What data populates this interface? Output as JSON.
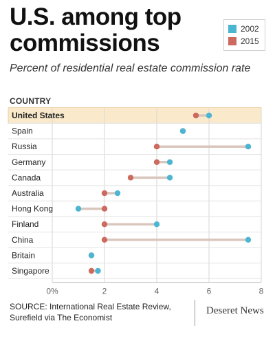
{
  "header": {
    "title": "U.S. among top commissions",
    "subtitle": "Percent of residential real estate commission rate"
  },
  "legend": {
    "items": [
      {
        "label": "2002",
        "color": "#4cb6d2"
      },
      {
        "label": "2015",
        "color": "#cd6a5f"
      }
    ]
  },
  "footer": {
    "source": "SOURCE: International Real Estate Review, Surefield via The Economist",
    "brand": "Deseret News"
  },
  "chart_data": {
    "type": "dumbbell",
    "category_axis_label": "COUNTRY",
    "categories": [
      "United States",
      "Spain",
      "Russia",
      "Germany",
      "Canada",
      "Australia",
      "Hong Kong",
      "Finland",
      "China",
      "Britain",
      "Singapore"
    ],
    "highlight": "United States",
    "series": [
      {
        "name": "2002",
        "color": "#4cb6d2",
        "values": [
          6.0,
          5.0,
          7.5,
          4.5,
          4.5,
          2.5,
          1.0,
          4.0,
          7.5,
          1.5,
          1.75
        ]
      },
      {
        "name": "2015",
        "color": "#cd6a5f",
        "values": [
          5.5,
          5.0,
          4.0,
          4.0,
          3.0,
          2.0,
          2.0,
          2.0,
          2.0,
          1.5,
          1.5
        ]
      }
    ],
    "x_ticks": [
      "0%",
      "2",
      "4",
      "6",
      "8"
    ],
    "xlim": [
      0,
      8
    ],
    "connector_color": "#d9c6bd",
    "highlight_color": "#faeacb",
    "grid": true
  }
}
